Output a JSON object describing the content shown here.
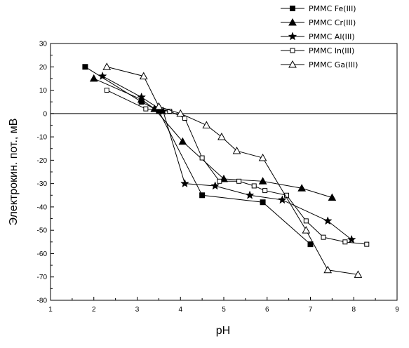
{
  "chart_data": {
    "type": "line",
    "title": "",
    "xlabel": "pH",
    "ylabel": "Электрокин. пот., мВ",
    "xlim": [
      1,
      9
    ],
    "ylim": [
      -80,
      30
    ],
    "xticks": [
      "1",
      "2",
      "3",
      "4",
      "5",
      "6",
      "7",
      "8",
      "9"
    ],
    "yticks": [
      "30",
      "20",
      "10",
      "0",
      "-10",
      "-20",
      "-30",
      "-40",
      "-50",
      "-60",
      "-70",
      "-80"
    ],
    "y_tick_values": [
      30,
      20,
      10,
      0,
      -10,
      -20,
      -30,
      -40,
      -50,
      -60,
      -70,
      -80
    ],
    "x_tick_values": [
      1,
      2,
      3,
      4,
      5,
      6,
      7,
      8,
      9
    ],
    "zero_line": true,
    "grid": false,
    "legend_position": "top-right",
    "series": [
      {
        "name": "PMMC Fe(III)",
        "marker": "filled-square",
        "x": [
          1.8,
          3.1,
          3.5,
          4.5,
          5.9,
          7.0
        ],
        "y": [
          20,
          5,
          1,
          -35,
          -38,
          -56
        ]
      },
      {
        "name": "PMMC Cr(III)",
        "marker": "filled-triangle",
        "x": [
          2.0,
          3.1,
          3.4,
          4.05,
          5.0,
          5.9,
          6.8,
          7.5
        ],
        "y": [
          15,
          6,
          2,
          -12,
          -28,
          -29,
          -32,
          -36
        ]
      },
      {
        "name": "PMMC Al(III)",
        "marker": "filled-star",
        "x": [
          2.2,
          3.1,
          3.6,
          4.1,
          4.8,
          5.6,
          6.35,
          7.4,
          7.95
        ],
        "y": [
          16,
          7,
          1,
          -30,
          -31,
          -35,
          -37,
          -46,
          -54
        ]
      },
      {
        "name": "PMMC In(III)",
        "marker": "open-square",
        "x": [
          2.3,
          3.2,
          3.75,
          4.1,
          4.5,
          4.9,
          5.35,
          5.7,
          5.95,
          6.45,
          6.9,
          7.3,
          7.8,
          8.3
        ],
        "y": [
          10,
          2,
          1,
          -2,
          -19,
          -29,
          -29,
          -31,
          -33,
          -35,
          -46,
          -53,
          -55,
          -56
        ]
      },
      {
        "name": "PMMC Ga(III)",
        "marker": "open-triangle",
        "x": [
          2.3,
          3.15,
          3.5,
          4.0,
          4.6,
          4.95,
          5.3,
          5.9,
          6.9,
          7.4,
          8.1
        ],
        "y": [
          20,
          16,
          3,
          0,
          -5,
          -10,
          -16,
          -19,
          -50,
          -67,
          -69
        ]
      }
    ]
  }
}
